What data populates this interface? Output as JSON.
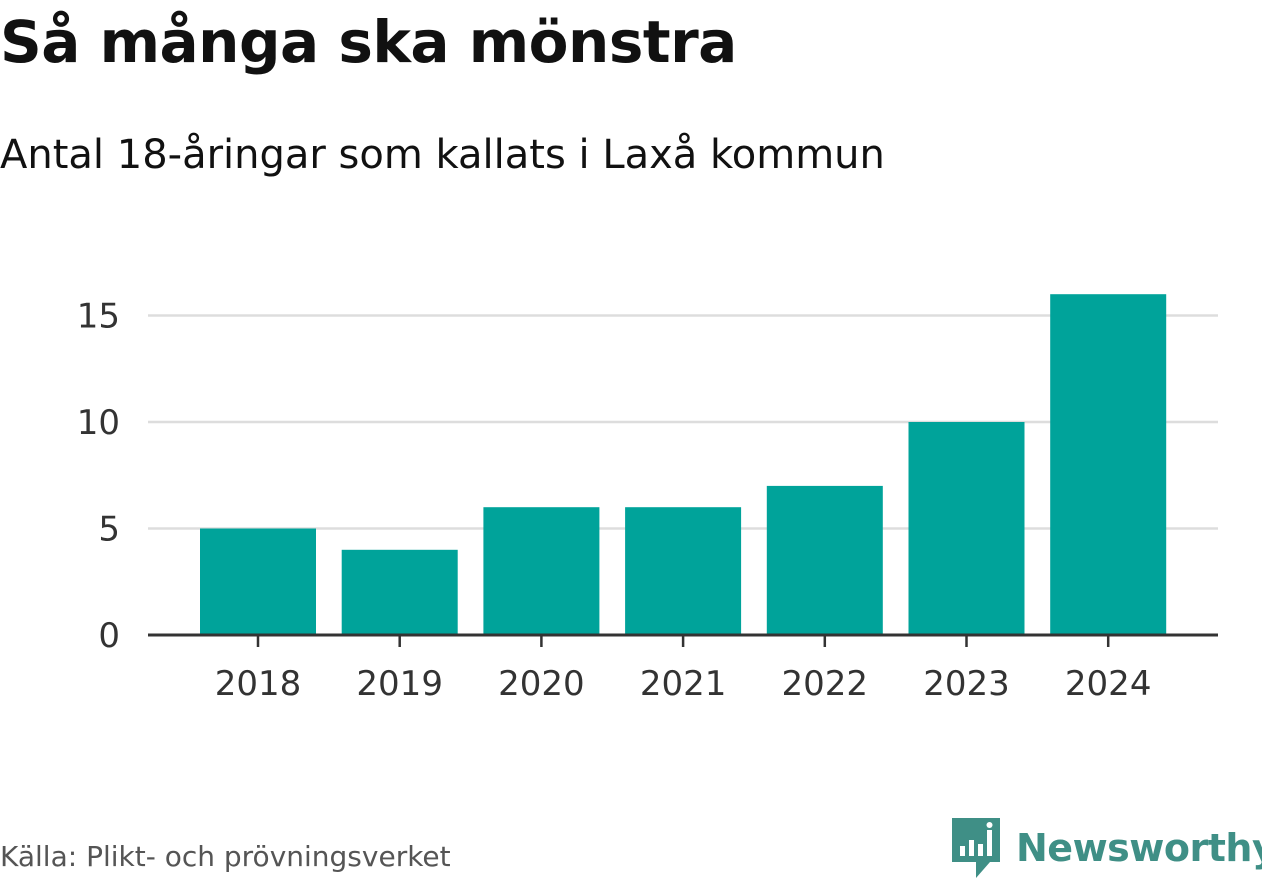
{
  "header": {
    "title": "Så många ska mönstra",
    "subtitle": "Antal 18-åringar som kallats i Laxå kommun"
  },
  "footer": {
    "source": "Källa: Plikt- och prövningsverket",
    "brand": "Newsworthy",
    "brand_color": "#3f8f86"
  },
  "chart_data": {
    "type": "bar",
    "title": "Så många ska mönstra",
    "subtitle": "Antal 18-åringar som kallats i Laxå kommun",
    "categories": [
      "2018",
      "2019",
      "2020",
      "2021",
      "2022",
      "2023",
      "2024"
    ],
    "values": [
      5,
      4,
      6,
      6,
      7,
      10,
      16
    ],
    "xlabel": "",
    "ylabel": "",
    "ylim": [
      0,
      16
    ],
    "yticks": [
      0,
      5,
      10,
      15
    ],
    "grid": true,
    "bar_color": "#00a39a",
    "grid_color": "#dddddd",
    "axis_color": "#333333",
    "legend": "none"
  }
}
